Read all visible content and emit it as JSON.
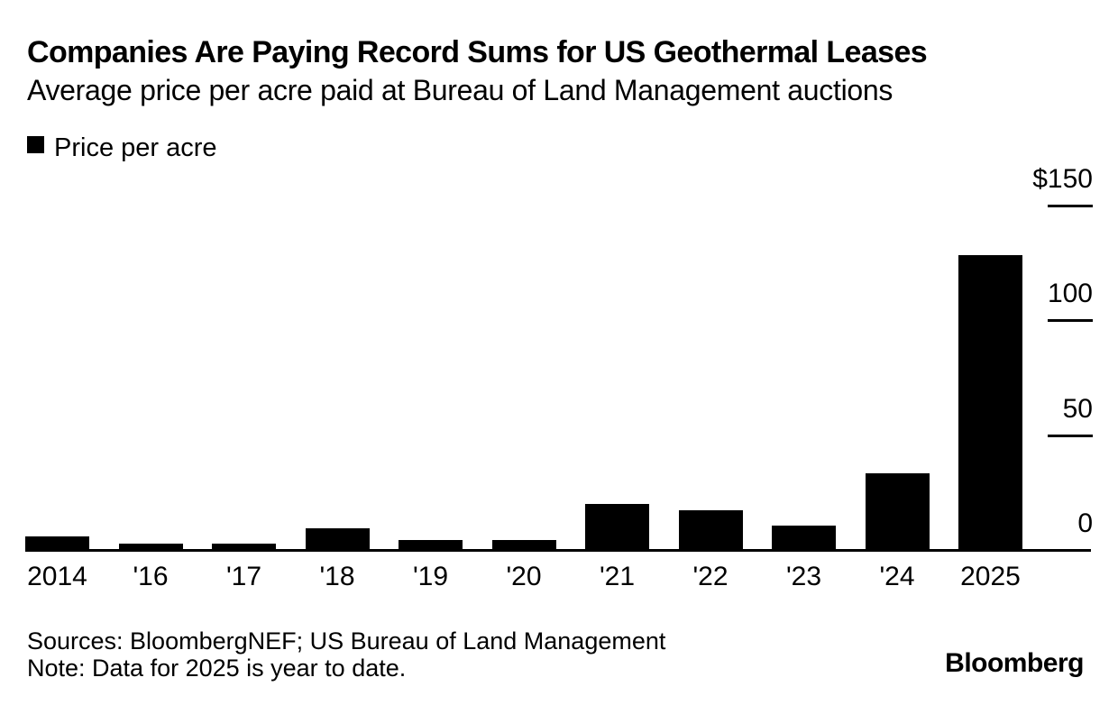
{
  "header": {
    "title": "Companies Are Paying Record Sums for US Geothermal Leases",
    "subtitle": "Average price per acre paid at Bureau of Land Management auctions"
  },
  "legend": {
    "label": "Price per acre",
    "swatch_color": "#000000"
  },
  "chart_data": {
    "type": "bar",
    "title": "Companies Are Paying Record Sums for US Geothermal Leases",
    "subtitle": "Average price per acre paid at Bureau of Land Management auctions",
    "categories": [
      "2014",
      "'16",
      "'17",
      "'18",
      "'19",
      "'20",
      "'21",
      "'22",
      "'23",
      "'24",
      "2025"
    ],
    "series": [
      {
        "name": "Price per acre",
        "values": [
          5.5,
          2.5,
          2.5,
          9,
          4,
          4,
          19.5,
          17,
          10,
          33,
          128
        ]
      }
    ],
    "ylim": [
      0,
      150
    ],
    "yticks": [
      {
        "value": 0,
        "label": "0"
      },
      {
        "value": 50,
        "label": "50"
      },
      {
        "value": 100,
        "label": "100"
      },
      {
        "value": 150,
        "label": "$150"
      }
    ],
    "yaxis_side": "right",
    "grid": false,
    "legend_position": "top-left",
    "bar_color": "#000000"
  },
  "footer": {
    "sources": "Sources: BloombergNEF; US Bureau of Land Management",
    "note": "Note: Data for 2025 is year to date.",
    "brand": "Bloomberg"
  },
  "colors": {
    "background": "#ffffff",
    "text": "#000000",
    "bar": "#000000",
    "axis": "#000000"
  }
}
